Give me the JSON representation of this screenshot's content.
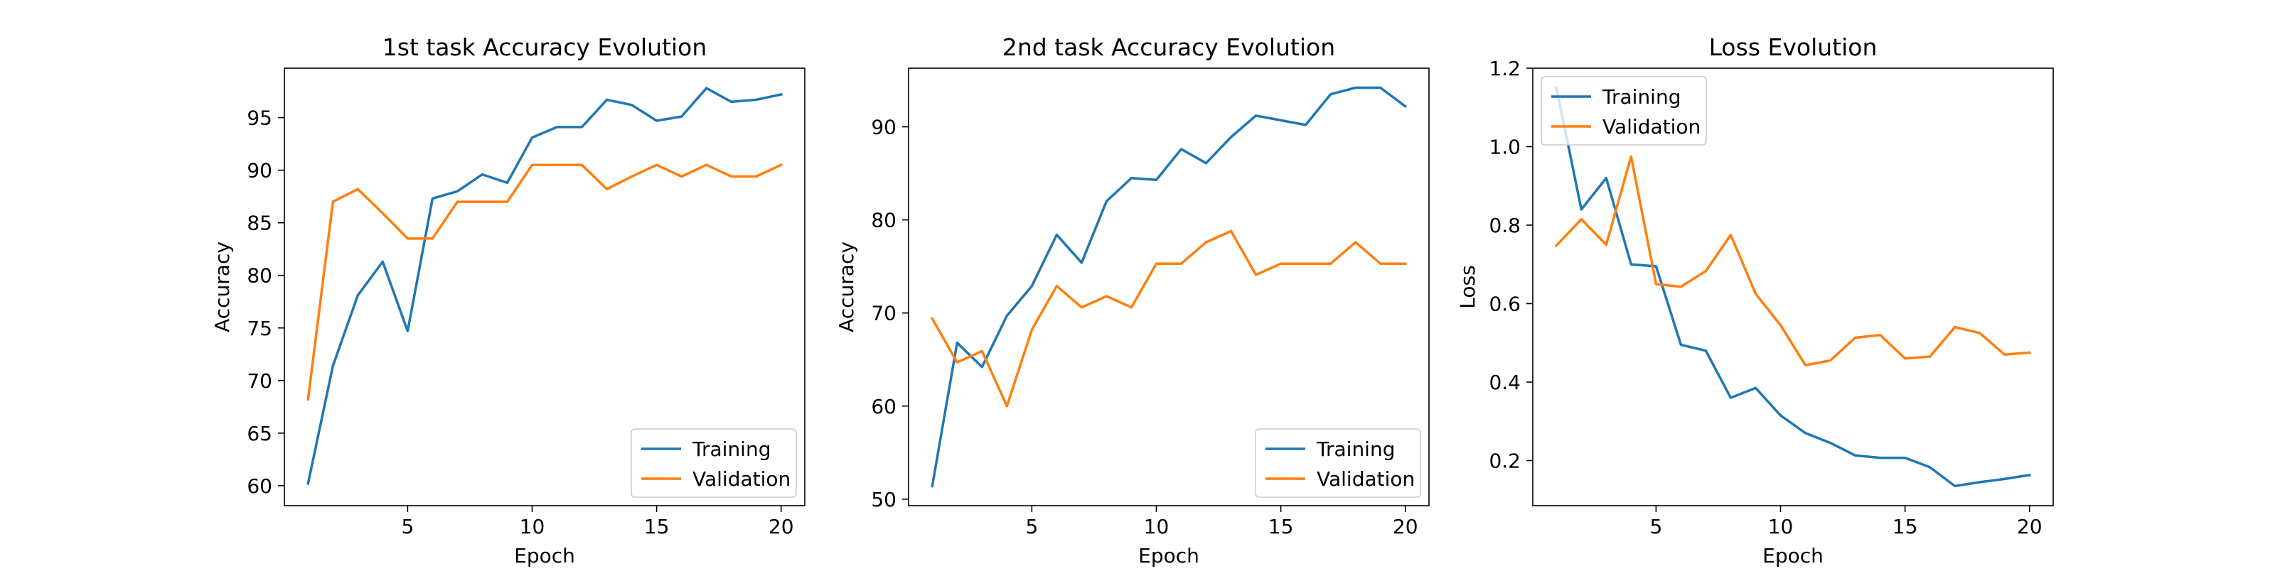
{
  "chart_data": [
    {
      "type": "line",
      "title": "1st task Accuracy Evolution",
      "xlabel": "Epoch",
      "ylabel": "Accuracy",
      "xlim": [
        0.05,
        20.95
      ],
      "ylim": [
        58.1,
        99.7
      ],
      "xticks": [
        5,
        10,
        15,
        20
      ],
      "yticks": [
        60,
        65,
        70,
        75,
        80,
        85,
        90,
        95
      ],
      "grid": false,
      "legend": "lower-right",
      "x": [
        1,
        2,
        3,
        4,
        5,
        6,
        7,
        8,
        9,
        10,
        11,
        12,
        13,
        14,
        15,
        16,
        17,
        18,
        19,
        20
      ],
      "series": [
        {
          "name": "Training",
          "color": "#1f77b4",
          "values": [
            60.2,
            71.4,
            78.1,
            81.3,
            74.7,
            87.3,
            88.0,
            89.6,
            88.8,
            93.1,
            94.1,
            94.1,
            96.7,
            96.2,
            94.7,
            95.1,
            97.8,
            96.5,
            96.7,
            97.2
          ]
        },
        {
          "name": "Validation",
          "color": "#ff7f0e",
          "values": [
            68.2,
            87.0,
            88.2,
            85.9,
            83.5,
            83.5,
            87.0,
            87.0,
            87.0,
            90.5,
            90.5,
            90.5,
            88.2,
            89.4,
            90.5,
            89.4,
            90.5,
            89.4,
            89.4,
            90.5
          ]
        }
      ]
    },
    {
      "type": "line",
      "title": "2nd task Accuracy Evolution",
      "xlabel": "Epoch",
      "ylabel": "Accuracy",
      "xlim": [
        0.05,
        20.95
      ],
      "ylim": [
        49.3,
        96.3
      ],
      "xticks": [
        5,
        10,
        15,
        20
      ],
      "yticks": [
        50,
        60,
        70,
        80,
        90
      ],
      "grid": false,
      "legend": "lower-right",
      "x": [
        1,
        2,
        3,
        4,
        5,
        6,
        7,
        8,
        9,
        10,
        11,
        12,
        13,
        14,
        15,
        16,
        17,
        18,
        19,
        20
      ],
      "series": [
        {
          "name": "Training",
          "color": "#1f77b4",
          "values": [
            51.4,
            66.8,
            64.2,
            69.7,
            72.9,
            78.4,
            75.4,
            82.0,
            84.5,
            84.3,
            87.6,
            86.1,
            88.9,
            91.2,
            90.7,
            90.2,
            93.5,
            94.2,
            94.2,
            92.2
          ]
        },
        {
          "name": "Validation",
          "color": "#ff7f0e",
          "values": [
            69.4,
            64.7,
            65.9,
            60.0,
            68.2,
            72.9,
            70.6,
            71.8,
            70.6,
            75.3,
            75.3,
            77.6,
            78.8,
            74.1,
            75.3,
            75.3,
            75.3,
            77.6,
            75.3,
            75.3
          ]
        }
      ]
    },
    {
      "type": "line",
      "title": "Loss Evolution",
      "xlabel": "Epoch",
      "ylabel": "Loss",
      "xlim": [
        0.05,
        20.95
      ],
      "ylim": [
        0.085,
        1.2
      ],
      "xticks": [
        5,
        10,
        15,
        20
      ],
      "yticks": [
        0.2,
        0.4,
        0.6,
        0.8,
        1.0,
        1.2
      ],
      "ytick_labels": [
        "0.2",
        "0.4",
        "0.6",
        "0.8",
        "1.0",
        "1.2"
      ],
      "grid": false,
      "legend": "upper-left",
      "x": [
        1,
        2,
        3,
        4,
        5,
        6,
        7,
        8,
        9,
        10,
        11,
        12,
        13,
        14,
        15,
        16,
        17,
        18,
        19,
        20
      ],
      "series": [
        {
          "name": "Training",
          "color": "#1f77b4",
          "values": [
            1.15,
            0.84,
            0.92,
            0.7,
            0.695,
            0.495,
            0.48,
            0.36,
            0.385,
            0.315,
            0.27,
            0.245,
            0.213,
            0.207,
            0.207,
            0.183,
            0.135,
            0.145,
            0.153,
            0.163
          ]
        },
        {
          "name": "Validation",
          "color": "#ff7f0e",
          "values": [
            0.748,
            0.815,
            0.75,
            0.975,
            0.65,
            0.643,
            0.683,
            0.775,
            0.625,
            0.545,
            0.443,
            0.455,
            0.513,
            0.52,
            0.46,
            0.465,
            0.54,
            0.525,
            0.47,
            0.475
          ]
        }
      ]
    }
  ]
}
